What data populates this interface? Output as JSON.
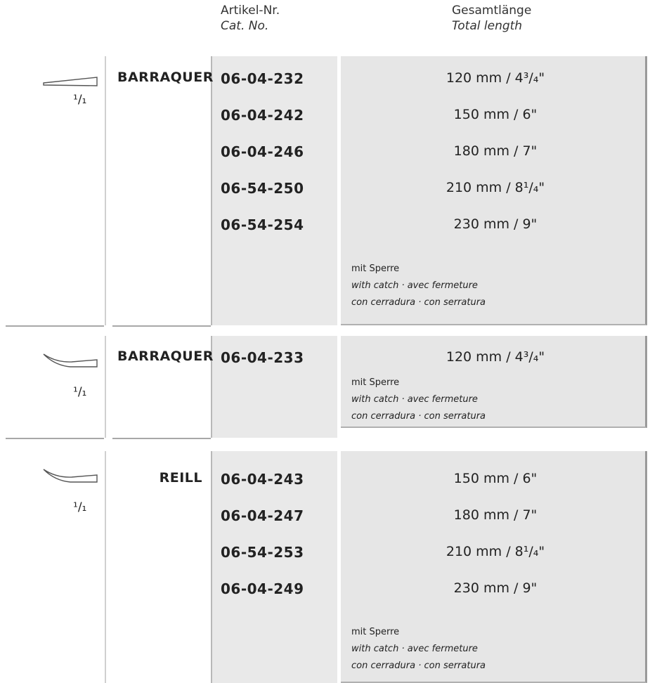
{
  "header": {
    "cat_no": [
      "Artikel-Nr.",
      "Cat. No."
    ],
    "length": [
      "Gesamtlänge",
      "Total length"
    ]
  },
  "groups": [
    {
      "scale": "¹/₁",
      "name": "BARRAQUER",
      "items": [
        [
          "06-04-232",
          "120 mm / 4³/₄\""
        ],
        [
          "06-04-242",
          "150 mm / 6\""
        ],
        [
          "06-04-246",
          "180 mm / 7\""
        ],
        [
          "06-54-250",
          "210 mm / 8¹/₄\""
        ],
        [
          "06-54-254",
          "230 mm / 9\""
        ]
      ],
      "note": [
        "mit Sperre",
        "with catch · avec fermeture",
        "con cerradura · con serratura"
      ]
    },
    {
      "scale": "¹/₁",
      "name": "BARRAQUER",
      "items": [
        [
          "06-04-233",
          "120 mm / 4³/₄\""
        ]
      ],
      "note": [
        "mit Sperre",
        "with catch · avec fermeture",
        "con cerradura · con serratura"
      ]
    },
    {
      "scale": "¹/₁",
      "name": "REILL",
      "items": [
        [
          "06-04-243",
          "150 mm / 6\""
        ],
        [
          "06-04-247",
          "180 mm / 7\""
        ],
        [
          "06-54-253",
          "210 mm / 8¹/₄\""
        ],
        [
          "06-04-249",
          "230 mm / 9\""
        ]
      ],
      "note": [
        "mit Sperre",
        "with catch · avec fermeture",
        "con cerradura · con serratura"
      ]
    }
  ]
}
